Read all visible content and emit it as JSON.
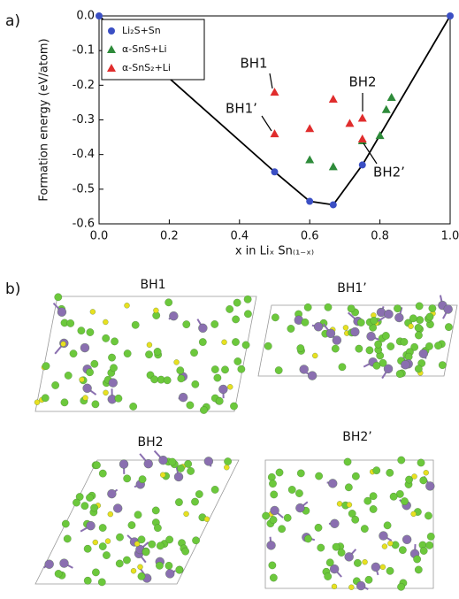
{
  "panel_a_label": "a)",
  "panel_b_label": "b)",
  "chart_data": {
    "type": "scatter",
    "xlabel": "x in Liₓ Sn₍₁₋ₓ₎",
    "ylabel": "Formation energy (eV/atom)",
    "xlim": [
      0,
      1
    ],
    "ylim": [
      -0.6,
      0
    ],
    "xticks": [
      {
        "value": 0,
        "label": "0.0"
      },
      0.2,
      0.4,
      0.6,
      0.8,
      {
        "value": 1,
        "label": "1.0"
      }
    ],
    "yticks": [
      {
        "value": 0,
        "label": "0.0"
      },
      -0.1,
      -0.2,
      -0.3,
      -0.4,
      -0.5,
      -0.6
    ],
    "legend_position": "upper left",
    "hull": {
      "x": [
        0,
        0.5,
        0.6,
        0.667,
        0.75,
        1
      ],
      "values": [
        0,
        -0.45,
        -0.535,
        -0.545,
        -0.43,
        0
      ],
      "color": "#000000"
    },
    "series": [
      {
        "name": "Li₂S+Sn",
        "color": "#3b4fc4",
        "marker": "circle",
        "x": [
          0,
          0.5,
          0.6,
          0.667,
          0.75,
          1
        ],
        "values": [
          0,
          -0.45,
          -0.535,
          -0.545,
          -0.43,
          0
        ]
      },
      {
        "name": "α-SnS+Li",
        "color": "#2e8b3a",
        "marker": "triangle",
        "x": [
          0.6,
          0.667,
          0.75,
          0.8,
          0.818,
          0.833
        ],
        "values": [
          -0.415,
          -0.435,
          -0.36,
          -0.345,
          -0.27,
          -0.235
        ]
      },
      {
        "name": "α-SnS₂+Li",
        "color": "#e02d2d",
        "marker": "triangle",
        "x": [
          0.5,
          0.5,
          0.6,
          0.667,
          0.714,
          0.75,
          0.75
        ],
        "values": [
          -0.22,
          -0.34,
          -0.325,
          -0.24,
          -0.31,
          -0.295,
          -0.355
        ]
      }
    ],
    "annotations": [
      "BH1",
      "BH1’",
      "BH2",
      "BH2’"
    ]
  },
  "structures": [
    {
      "label": "BH1"
    },
    {
      "label": "BH1’"
    },
    {
      "label": "BH2"
    },
    {
      "label": "BH2’"
    }
  ]
}
